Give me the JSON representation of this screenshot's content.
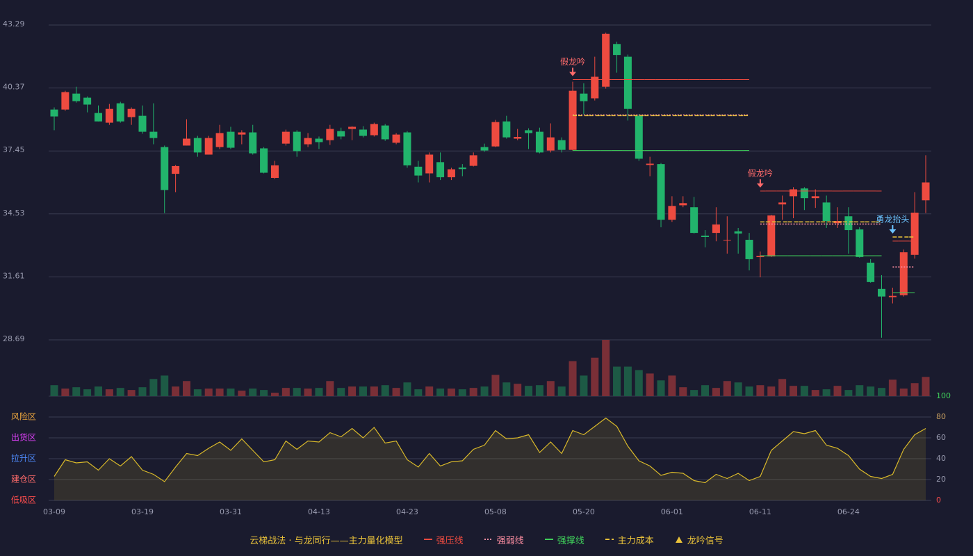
{
  "chart_data": {
    "type": "candlestick",
    "categories": [
      "03-09",
      null,
      null,
      null,
      null,
      null,
      null,
      null,
      "03-19",
      null,
      null,
      null,
      null,
      null,
      null,
      null,
      "03-31",
      null,
      null,
      null,
      null,
      null,
      null,
      null,
      "04-13",
      null,
      null,
      null,
      null,
      null,
      null,
      null,
      "04-23",
      null,
      null,
      null,
      null,
      null,
      null,
      null,
      "05-08",
      null,
      null,
      null,
      null,
      null,
      null,
      null,
      "05-20",
      null,
      null,
      null,
      null,
      null,
      null,
      null,
      "06-01",
      null,
      null,
      null,
      null,
      null,
      null,
      null,
      "06-11",
      null,
      null,
      null,
      null,
      null,
      null,
      null,
      "06-24",
      null,
      null,
      null,
      null,
      null,
      null,
      null
    ],
    "open": [
      39.37,
      39.37,
      40.11,
      39.92,
      39.21,
      38.76,
      39.66,
      39.02,
      39.08,
      38.34,
      37.63,
      36.39,
      37.7,
      38.05,
      37.28,
      37.63,
      38.34,
      38.21,
      38.31,
      37.57,
      36.2,
      37.79,
      38.34,
      37.76,
      38.02,
      37.95,
      38.37,
      38.47,
      38.44,
      38.18,
      38.63,
      37.83,
      38.31,
      36.72,
      36.41,
      36.93,
      36.23,
      36.68,
      36.76,
      37.63,
      37.66,
      38.82,
      38.02,
      38.41,
      38.34,
      37.47,
      37.95,
      37.5,
      40.11,
      39.89,
      40.43,
      42.41,
      41.82,
      39.08,
      36.8,
      36.84,
      34.26,
      34.93,
      34.84,
      33.52,
      33.65,
      33.3,
      33.72,
      33.33,
      32.53,
      32.56,
      34.97,
      35.35,
      35.71,
      35.26,
      35.06,
      34.1,
      34.42,
      33.81,
      32.27,
      31.05,
      30.67,
      30.76,
      32.63,
      35.16
    ],
    "close": [
      39.05,
      40.18,
      39.76,
      39.6,
      38.82,
      39.4,
      38.82,
      39.4,
      38.34,
      38.05,
      35.64,
      36.75,
      38.02,
      37.38,
      38.05,
      38.28,
      37.6,
      38.31,
      37.34,
      36.44,
      36.78,
      38.34,
      37.44,
      38.05,
      37.86,
      38.47,
      38.12,
      38.57,
      38.15,
      38.7,
      37.99,
      38.21,
      36.78,
      36.31,
      37.28,
      36.23,
      36.6,
      36.61,
      37.25,
      37.47,
      38.79,
      38.08,
      38.1,
      38.28,
      37.38,
      38.08,
      37.5,
      40.24,
      39.76,
      40.89,
      42.88,
      41.9,
      39.4,
      37.09,
      36.86,
      34.26,
      34.9,
      35.03,
      33.65,
      33.46,
      34.04,
      33.33,
      33.62,
      32.43,
      32.59,
      34.46,
      35.06,
      35.67,
      35.26,
      35.35,
      34.2,
      34.2,
      33.78,
      32.53,
      31.37,
      30.7,
      30.73,
      32.75,
      34.59,
      35.99
    ],
    "high": [
      39.47,
      40.24,
      40.43,
      39.98,
      39.56,
      39.63,
      39.73,
      39.47,
      39.56,
      39.66,
      37.7,
      36.8,
      38.92,
      38.15,
      38.15,
      38.66,
      38.57,
      38.41,
      38.66,
      37.63,
      36.99,
      38.44,
      38.41,
      38.28,
      38.12,
      38.66,
      38.53,
      38.6,
      38.6,
      38.76,
      38.7,
      38.28,
      38.37,
      36.99,
      37.38,
      37.38,
      36.67,
      36.84,
      37.38,
      37.79,
      38.89,
      39.08,
      38.47,
      38.5,
      38.53,
      38.73,
      38.08,
      40.66,
      40.59,
      41.82,
      42.94,
      42.52,
      41.92,
      39.15,
      37.18,
      36.89,
      35.35,
      35.35,
      35.32,
      33.78,
      34.84,
      34.42,
      33.88,
      33.65,
      32.79,
      34.49,
      35.38,
      35.77,
      35.77,
      35.67,
      35.38,
      34.84,
      34.84,
      33.91,
      32.43,
      31.69,
      31.11,
      32.88,
      35.54,
      37.25
    ],
    "low": [
      38.41,
      39.31,
      39.69,
      39.24,
      38.82,
      38.66,
      38.76,
      38.66,
      38.25,
      37.76,
      34.57,
      35.54,
      37.7,
      37.18,
      37.28,
      37.54,
      37.54,
      37.76,
      37.28,
      36.41,
      36.15,
      37.7,
      37.18,
      37.63,
      37.54,
      37.73,
      37.99,
      37.95,
      38.08,
      38.12,
      37.92,
      37.76,
      36.67,
      35.99,
      35.99,
      36.1,
      36.1,
      36.28,
      36.73,
      37.41,
      37.63,
      38.02,
      37.95,
      37.54,
      37.34,
      37.38,
      37.38,
      37.47,
      39.15,
      39.79,
      40.34,
      41.08,
      38.86,
      36.99,
      36.28,
      33.91,
      34.16,
      34.84,
      33.62,
      32.98,
      33.26,
      32.69,
      32.69,
      31.91,
      31.59,
      32.53,
      34.26,
      34.33,
      34.71,
      34.81,
      33.88,
      33.88,
      32.69,
      32.5,
      31.34,
      28.79,
      30.38,
      30.7,
      32.46,
      34.57
    ],
    "up_color": "#ee4b40",
    "down_color": "#22b46c",
    "ylim": [
      28.69,
      43.29
    ],
    "yticks": [
      28.69,
      31.61,
      34.53,
      37.45,
      40.37,
      43.29
    ],
    "grid": true,
    "volume": {
      "values": [
        16,
        11,
        13,
        10,
        14,
        10,
        12,
        9,
        13,
        25,
        30,
        14,
        22,
        10,
        11,
        11,
        11,
        8,
        11,
        9,
        5,
        12,
        12,
        11,
        12,
        22,
        12,
        14,
        14,
        14,
        16,
        12,
        20,
        10,
        14,
        11,
        11,
        10,
        12,
        14,
        31,
        20,
        18,
        15,
        16,
        22,
        14,
        51,
        30,
        56,
        82,
        43,
        43,
        38,
        33,
        23,
        30,
        13,
        9,
        16,
        12,
        22,
        20,
        14,
        16,
        14,
        25,
        15,
        15,
        9,
        10,
        15,
        9,
        16,
        14,
        12,
        24,
        11,
        19,
        28
      ],
      "up_color": "#7a2f37",
      "down_color": "#1d5a45"
    },
    "levels": [
      {
        "name": "强压线",
        "color": "#ee4b40",
        "dash": "none",
        "values": [
          null,
          null,
          null,
          null,
          null,
          null,
          null,
          null,
          null,
          null,
          null,
          null,
          null,
          null,
          null,
          null,
          null,
          null,
          null,
          null,
          null,
          null,
          null,
          null,
          null,
          null,
          null,
          null,
          null,
          null,
          null,
          null,
          null,
          null,
          null,
          null,
          null,
          null,
          null,
          null,
          null,
          null,
          null,
          null,
          null,
          null,
          null,
          40.76,
          40.76,
          40.76,
          40.76,
          40.76,
          40.76,
          40.76,
          40.76,
          40.76,
          40.76,
          40.76,
          40.76,
          40.76,
          40.76,
          40.76,
          40.76,
          40.76,
          35.59,
          35.59,
          35.59,
          35.59,
          35.59,
          35.59,
          35.59,
          35.59,
          35.59,
          35.59,
          35.59,
          35.59,
          33.27,
          33.27,
          33.27
        ]
      },
      {
        "name": "强弱线",
        "color": "#ff8fa3",
        "dash": "2,2",
        "values": [
          null,
          null,
          null,
          null,
          null,
          null,
          null,
          null,
          null,
          null,
          null,
          null,
          null,
          null,
          null,
          null,
          null,
          null,
          null,
          null,
          null,
          null,
          null,
          null,
          null,
          null,
          null,
          null,
          null,
          null,
          null,
          null,
          null,
          null,
          null,
          null,
          null,
          null,
          null,
          null,
          null,
          null,
          null,
          null,
          null,
          null,
          null,
          39.12,
          39.12,
          39.12,
          39.12,
          39.12,
          39.12,
          39.12,
          39.12,
          39.12,
          39.12,
          39.12,
          39.12,
          39.12,
          39.12,
          39.12,
          39.12,
          39.12,
          34.06,
          34.06,
          34.06,
          34.06,
          34.06,
          34.06,
          34.06,
          34.06,
          34.06,
          34.06,
          34.06,
          34.06,
          32.07,
          32.07,
          32.07
        ]
      },
      {
        "name": "强撑线",
        "color": "#3fcf5a",
        "dash": "none",
        "values": [
          null,
          null,
          null,
          null,
          null,
          null,
          null,
          null,
          null,
          null,
          null,
          null,
          null,
          null,
          null,
          null,
          null,
          null,
          null,
          null,
          null,
          null,
          null,
          null,
          null,
          null,
          null,
          null,
          null,
          null,
          null,
          null,
          null,
          null,
          null,
          null,
          null,
          null,
          null,
          null,
          null,
          null,
          null,
          null,
          null,
          null,
          null,
          37.47,
          37.47,
          37.47,
          37.47,
          37.47,
          37.47,
          37.47,
          37.47,
          37.47,
          37.47,
          37.47,
          37.47,
          37.47,
          37.47,
          37.47,
          37.47,
          37.47,
          32.59,
          32.59,
          32.59,
          32.59,
          32.59,
          32.59,
          32.59,
          32.59,
          32.59,
          32.59,
          32.59,
          32.59,
          30.88,
          30.88,
          30.88
        ]
      },
      {
        "name": "主力成本",
        "color": "#e8c13a",
        "dash": "6,3",
        "values": [
          null,
          null,
          null,
          null,
          null,
          null,
          null,
          null,
          null,
          null,
          null,
          null,
          null,
          null,
          null,
          null,
          null,
          null,
          null,
          null,
          null,
          null,
          null,
          null,
          null,
          null,
          null,
          null,
          null,
          null,
          null,
          null,
          null,
          null,
          null,
          null,
          null,
          null,
          null,
          null,
          null,
          null,
          null,
          null,
          null,
          null,
          null,
          39.09,
          39.09,
          39.09,
          39.09,
          39.09,
          39.09,
          39.09,
          39.09,
          39.09,
          39.09,
          39.09,
          39.09,
          39.09,
          39.09,
          39.09,
          39.09,
          39.09,
          34.16,
          34.16,
          34.16,
          34.16,
          34.16,
          34.16,
          34.16,
          34.16,
          34.16,
          34.16,
          34.16,
          34.16,
          33.46,
          33.46,
          33.46
        ]
      }
    ],
    "signals": [
      null,
      null,
      null,
      null,
      null,
      null,
      null,
      null,
      null,
      null,
      null,
      null,
      null,
      null,
      null,
      null,
      null,
      null,
      null,
      null,
      null,
      null,
      null,
      null,
      null,
      null,
      null,
      null,
      null,
      null,
      null,
      null,
      null,
      null,
      null,
      null,
      null,
      null,
      null,
      null,
      null,
      null,
      null,
      null,
      null,
      null,
      null,
      {
        "text": "假龙吟",
        "color": "#ff6b6b"
      },
      null,
      null,
      null,
      null,
      null,
      null,
      null,
      null,
      null,
      null,
      null,
      null,
      null,
      null,
      null,
      null,
      {
        "text": "假龙吟",
        "color": "#ff6b6b"
      },
      null,
      null,
      null,
      null,
      null,
      null,
      null,
      null,
      null,
      null,
      null,
      {
        "text": "勇龙抬头",
        "color": "#6cc4ff"
      },
      null,
      null
    ],
    "legend_title": "云梯战法 · 与龙同行——主力量化模型",
    "signal_legend": {
      "name": "龙吟信号",
      "color": "#e8c13a"
    },
    "indicator": {
      "type": "area",
      "color": "#d9b92a",
      "values": [
        23,
        39,
        36,
        37,
        29,
        40,
        33,
        42,
        29,
        25,
        18,
        32,
        45,
        43,
        50,
        56,
        48,
        59,
        48,
        37,
        39,
        57,
        49,
        57,
        56,
        65,
        61,
        69,
        60,
        70,
        55,
        57,
        39,
        32,
        45,
        33,
        37,
        38,
        49,
        53,
        67,
        59,
        60,
        63,
        46,
        56,
        45,
        67,
        63,
        71,
        79,
        71,
        52,
        38,
        33,
        24,
        27,
        26,
        19,
        17,
        25,
        21,
        26,
        19,
        23,
        48,
        57,
        66,
        64,
        67,
        53,
        50,
        43,
        30,
        23,
        21,
        25,
        49,
        63,
        69
      ],
      "ylim": [
        0,
        100
      ],
      "yticks": [
        0,
        20,
        40,
        60,
        80,
        100
      ],
      "ytick_colors": [
        "#ff4d4d",
        "#9a9cb0",
        "#9a9cb0",
        "#9a9cb0",
        "#c8a060",
        "#3fcf5a"
      ],
      "zones": [
        {
          "label": "低吸区",
          "color": "#ff4d4d"
        },
        {
          "label": "建仓区",
          "color": "#ff6b6b"
        },
        {
          "label": "拉升区",
          "color": "#4f8cff"
        },
        {
          "label": "出货区",
          "color": "#e040fb"
        },
        {
          "label": "风险区",
          "color": "#e8a33d"
        }
      ]
    }
  }
}
